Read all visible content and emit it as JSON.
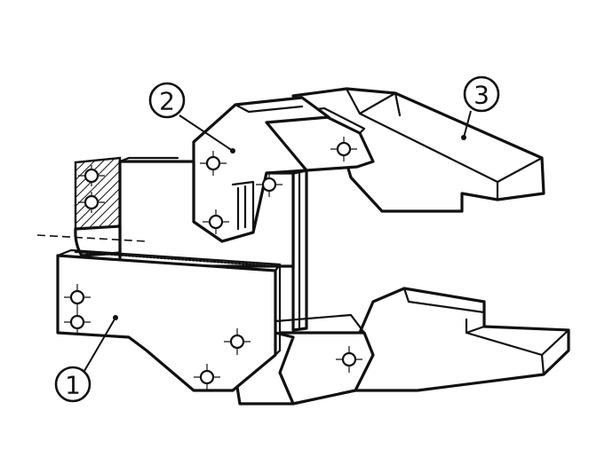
{
  "callouts": [
    {
      "label": "1"
    },
    {
      "label": "2"
    },
    {
      "label": "3"
    }
  ]
}
